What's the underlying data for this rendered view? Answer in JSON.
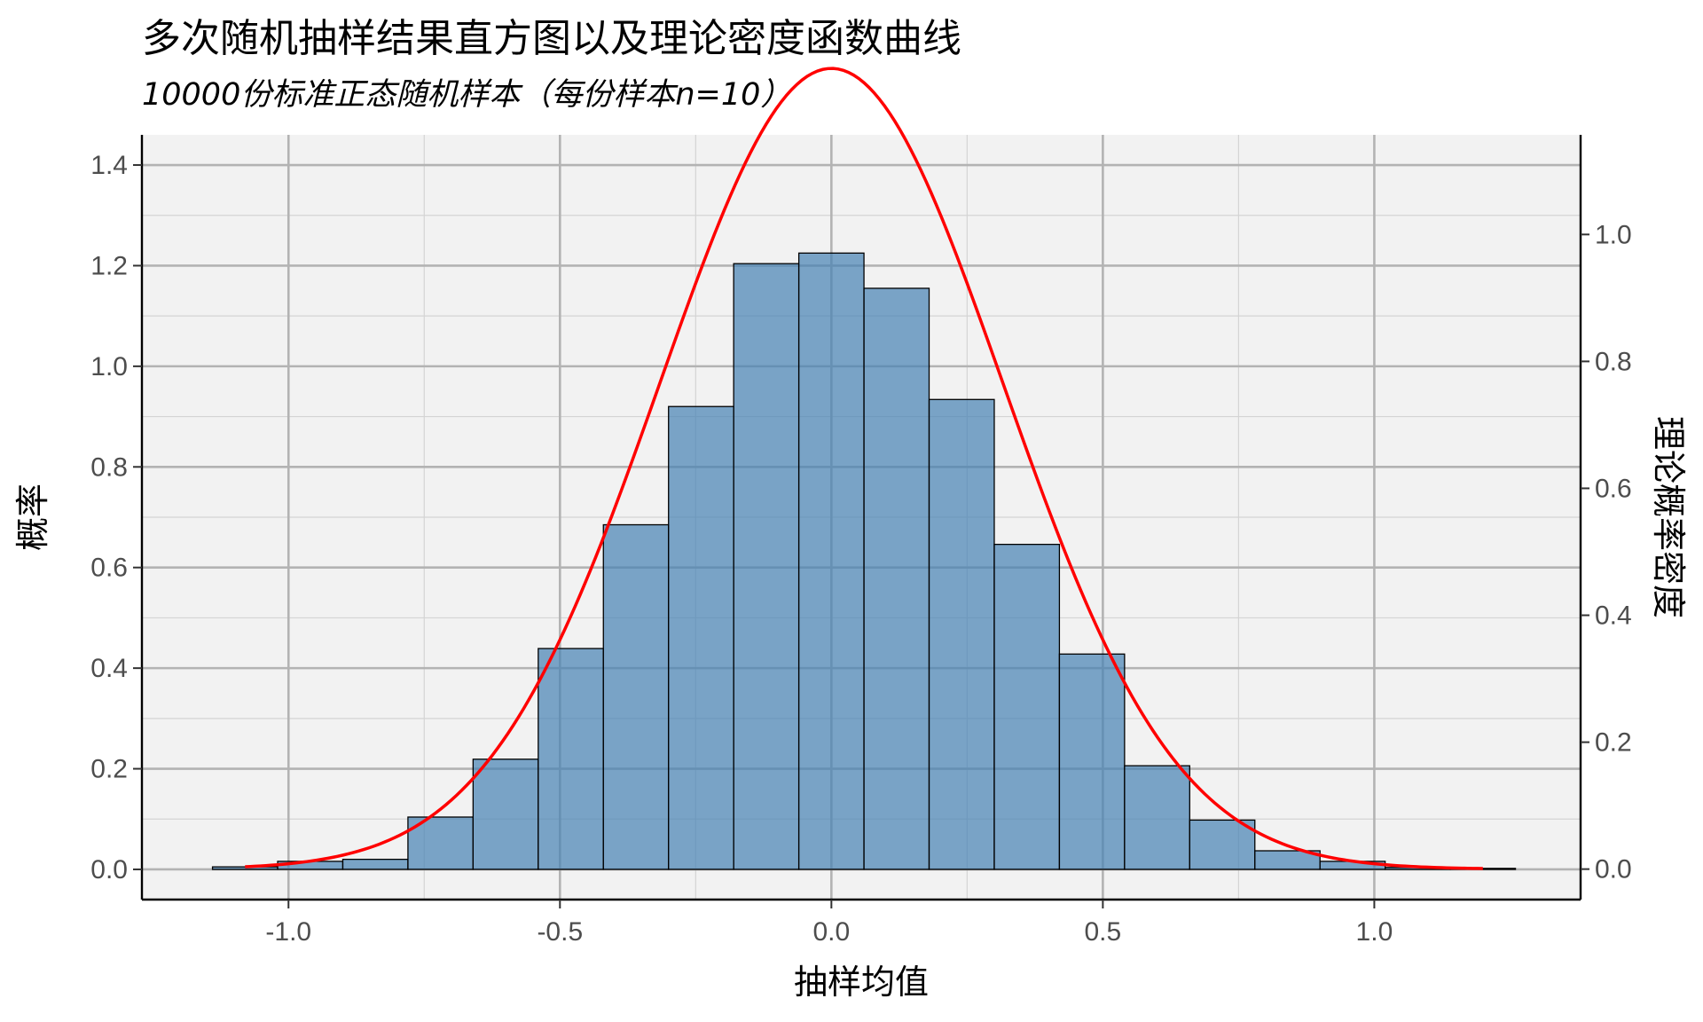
{
  "chart_data": {
    "type": "bar",
    "title": "多次随机抽样结果直方图以及理论密度函数曲线",
    "subtitle": "10000份标准正态随机样本（每份样本n=10）",
    "xlabel": "抽样均值",
    "ylabel": "概率",
    "y2label": "理论概率密度",
    "xlim": [
      -1.27,
      1.38
    ],
    "ylim": [
      -0.06,
      1.46
    ],
    "y2lim": [
      -0.048,
      1.157
    ],
    "x_ticks": [
      "-1.0",
      "-0.5",
      "0.0",
      "0.5",
      "1.0"
    ],
    "x_tick_values": [
      -1.0,
      -0.5,
      0.0,
      0.5,
      1.0
    ],
    "y_ticks": [
      "0.0",
      "0.2",
      "0.4",
      "0.6",
      "0.8",
      "1.0",
      "1.2",
      "1.4"
    ],
    "y_tick_values": [
      0,
      0.2,
      0.4,
      0.6,
      0.8,
      1.0,
      1.2,
      1.4
    ],
    "y2_ticks": [
      "0.0",
      "0.2",
      "0.4",
      "0.6",
      "0.8",
      "1.0"
    ],
    "y2_tick_values": [
      0,
      0.2,
      0.4,
      0.6,
      0.8,
      1.0
    ],
    "grid": true,
    "histogram": {
      "fill": "#4682b4",
      "fill_opacity": 0.7,
      "edge": "#000000",
      "bins": [
        {
          "x0": -1.14,
          "x1": -1.02,
          "value": 0.005
        },
        {
          "x0": -1.02,
          "x1": -0.9,
          "value": 0.016
        },
        {
          "x0": -0.9,
          "x1": -0.78,
          "value": 0.02
        },
        {
          "x0": -0.78,
          "x1": -0.66,
          "value": 0.104
        },
        {
          "x0": -0.66,
          "x1": -0.54,
          "value": 0.219
        },
        {
          "x0": -0.54,
          "x1": -0.42,
          "value": 0.439
        },
        {
          "x0": -0.42,
          "x1": -0.3,
          "value": 0.685
        },
        {
          "x0": -0.3,
          "x1": -0.18,
          "value": 0.92
        },
        {
          "x0": -0.18,
          "x1": -0.06,
          "value": 1.204
        },
        {
          "x0": -0.06,
          "x1": 0.06,
          "value": 1.225
        },
        {
          "x0": 0.06,
          "x1": 0.18,
          "value": 1.155
        },
        {
          "x0": 0.18,
          "x1": 0.3,
          "value": 0.934
        },
        {
          "x0": 0.3,
          "x1": 0.42,
          "value": 0.646
        },
        {
          "x0": 0.42,
          "x1": 0.54,
          "value": 0.428
        },
        {
          "x0": 0.54,
          "x1": 0.66,
          "value": 0.206
        },
        {
          "x0": 0.66,
          "x1": 0.78,
          "value": 0.098
        },
        {
          "x0": 0.78,
          "x1": 0.9,
          "value": 0.037
        },
        {
          "x0": 0.9,
          "x1": 1.02,
          "value": 0.016
        },
        {
          "x0": 1.02,
          "x1": 1.14,
          "value": 0.004
        },
        {
          "x0": 1.14,
          "x1": 1.26,
          "value": 0.002
        }
      ]
    },
    "curve": {
      "type": "normal_pdf",
      "mean": 0,
      "sd": 0.3162,
      "x_range": [
        -1.08,
        1.2
      ],
      "color": "#ff0000",
      "axis": "y2"
    }
  }
}
